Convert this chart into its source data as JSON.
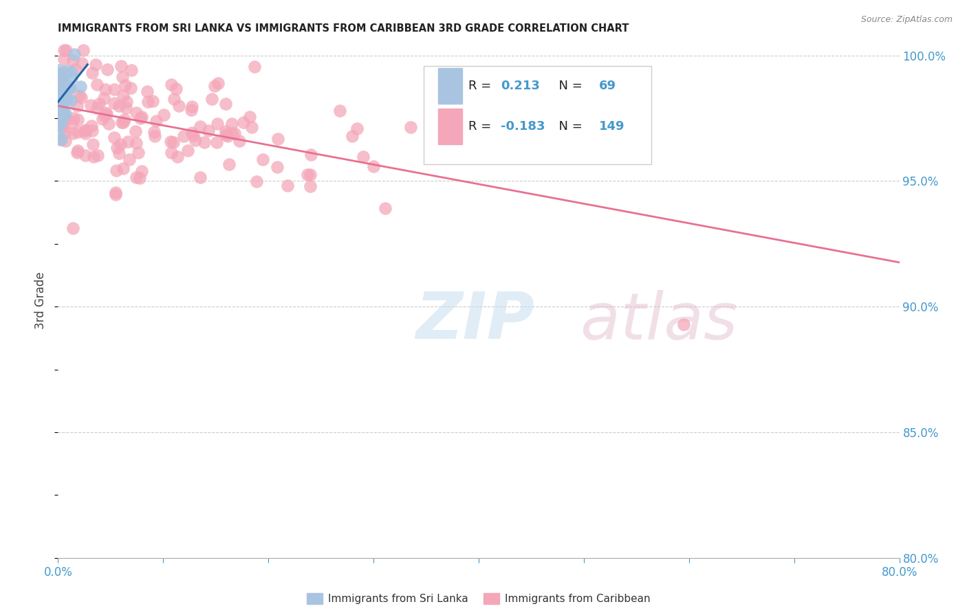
{
  "title": "IMMIGRANTS FROM SRI LANKA VS IMMIGRANTS FROM CARIBBEAN 3RD GRADE CORRELATION CHART",
  "source": "Source: ZipAtlas.com",
  "ylabel": "3rd Grade",
  "xlim": [
    0.0,
    0.8
  ],
  "ylim": [
    0.8,
    1.005
  ],
  "yticks": [
    0.8,
    0.85,
    0.9,
    0.95,
    1.0
  ],
  "ytick_labels": [
    "80.0%",
    "85.0%",
    "90.0%",
    "95.0%",
    "100.0%"
  ],
  "xtick_labels": [
    "0.0%",
    "",
    "",
    "",
    "",
    "",
    "",
    "",
    "80.0%"
  ],
  "color_sri_lanka": "#a8c4e0",
  "color_caribbean": "#f4a7b9",
  "color_sri_lanka_line": "#2266aa",
  "color_caribbean_line": "#e87090",
  "color_axis_text": "#4499cc",
  "background_color": "#ffffff",
  "grid_color": "#cccccc",
  "legend_R1": "0.213",
  "legend_N1": "69",
  "legend_R2": "-0.183",
  "legend_N2": "149",
  "watermark_zip_color": "#c5dff0",
  "watermark_atlas_color": "#d8b0c8",
  "sri_lanka_seed": 12,
  "caribbean_seed": 7
}
